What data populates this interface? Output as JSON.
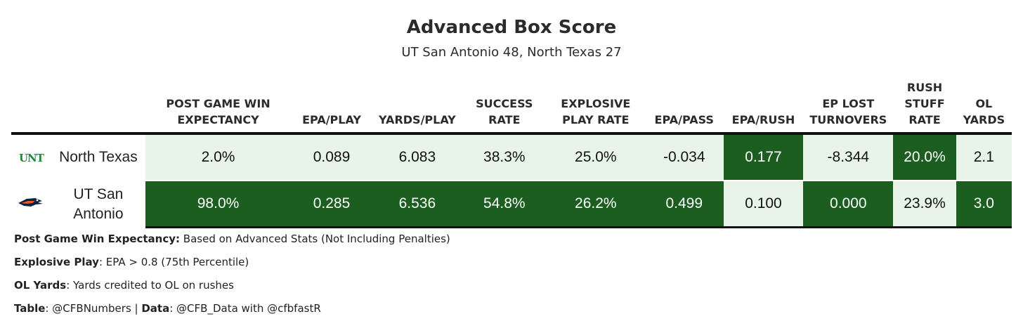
{
  "title": "Advanced Box Score",
  "subtitle": "UT San Antonio 48, North Texas 27",
  "colors": {
    "dark_green": "#1b5e20",
    "light_green": "#e7f4e7",
    "unt_logo_green": "#1f8a3a",
    "utsa_logo_blue": "#0c2340",
    "utsa_logo_orange": "#f15a22"
  },
  "chart_data": {
    "type": "table",
    "columns": [
      "POST GAME WIN EXPECTANCY",
      "EPA/PLAY",
      "YARDS/PLAY",
      "SUCCESS RATE",
      "EXPLOSIVE PLAY RATE",
      "EPA/PASS",
      "EPA/RUSH",
      "EP LOST TURNOVERS",
      "RUSH STUFF RATE",
      "OL YARDS"
    ],
    "rows": [
      {
        "team": "North Texas",
        "logo": "unt-logo",
        "logo_text": "UNT",
        "values": [
          "2.0%",
          "0.089",
          "6.083",
          "38.3%",
          "25.0%",
          "-0.034",
          "0.177",
          "-8.344",
          "20.0%",
          "2.1"
        ],
        "shading": [
          "light",
          "light",
          "light",
          "light",
          "light",
          "light",
          "dark",
          "light",
          "dark",
          "light"
        ]
      },
      {
        "team": "UT San Antonio",
        "logo": "utsa-roadrunner-logo",
        "values": [
          "98.0%",
          "0.285",
          "6.536",
          "54.8%",
          "26.2%",
          "0.499",
          "0.100",
          "0.000",
          "23.9%",
          "3.0"
        ],
        "shading": [
          "dark",
          "dark",
          "dark",
          "dark",
          "dark",
          "dark",
          "light",
          "dark",
          "light",
          "dark"
        ]
      }
    ]
  },
  "notes": [
    {
      "label": "Post Game Win Expectancy:",
      "text": " Based on Advanced Stats (Not Including Penalties)"
    },
    {
      "label": "Explosive Play",
      "text": ": EPA > 0.8 (75th Percentile)"
    },
    {
      "label": "OL Yards",
      "text": ": Yards credited to OL on rushes"
    }
  ],
  "credits": {
    "table_label": "Table",
    "table_value": ": @CFBNumbers | ",
    "data_label": "Data",
    "data_value": ": @CFB_Data with @cfbfastR"
  }
}
